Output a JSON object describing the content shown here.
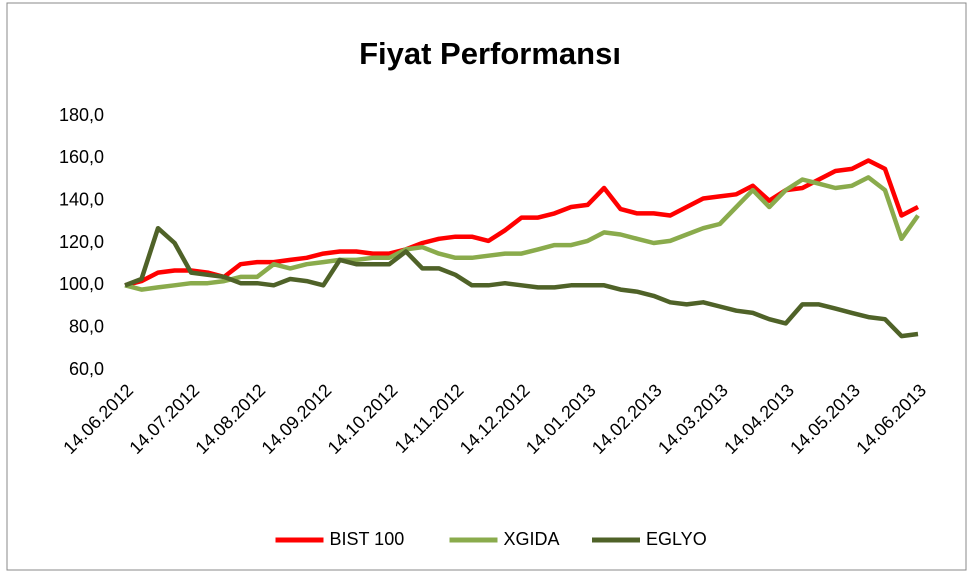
{
  "chart_data": {
    "type": "line",
    "title": "Fiyat Performansı",
    "categories": [
      "14.06.2012",
      null,
      null,
      null,
      "14.07.2012",
      null,
      null,
      null,
      "14.08.2012",
      null,
      null,
      null,
      "14.09.2012",
      null,
      null,
      null,
      "14.10.2012",
      null,
      null,
      null,
      "14.11.2012",
      null,
      null,
      null,
      "14.12.2012",
      null,
      null,
      null,
      "14.01.2013",
      null,
      null,
      null,
      "14.02.2013",
      null,
      null,
      null,
      "14.03.2013",
      null,
      null,
      null,
      "14.04.2013",
      null,
      null,
      null,
      "14.05.2013",
      null,
      null,
      null,
      "14.06.2013"
    ],
    "series": [
      {
        "name": "BIST 100",
        "color": "#ff0000",
        "values": [
          100,
          102,
          106,
          107,
          107,
          106,
          104,
          110,
          111,
          111,
          112,
          113,
          115,
          116,
          116,
          115,
          115,
          117,
          120,
          122,
          123,
          123,
          121,
          126,
          132,
          132,
          134,
          137,
          138,
          146,
          136,
          134,
          134,
          133,
          137,
          141,
          142,
          143,
          147,
          140,
          145,
          146,
          150,
          154,
          155,
          159,
          155,
          133,
          137
        ]
      },
      {
        "name": "XGIDA",
        "color": "#8aab4c",
        "values": [
          100,
          98,
          99,
          100,
          101,
          101,
          102,
          104,
          104,
          110,
          108,
          110,
          111,
          112,
          112,
          113,
          113,
          117,
          118,
          115,
          113,
          113,
          114,
          115,
          115,
          117,
          119,
          119,
          121,
          125,
          124,
          122,
          120,
          121,
          124,
          127,
          129,
          137,
          145,
          137,
          145,
          150,
          148,
          146,
          147,
          151,
          145,
          122,
          133
        ]
      },
      {
        "name": "EGLYO",
        "color": "#4f6228",
        "values": [
          100,
          103,
          127,
          120,
          106,
          105,
          104,
          101,
          101,
          100,
          103,
          102,
          100,
          112,
          110,
          110,
          110,
          116,
          108,
          108,
          105,
          100,
          100,
          101,
          100,
          99,
          99,
          100,
          100,
          100,
          98,
          97,
          95,
          92,
          91,
          92,
          90,
          88,
          87,
          84,
          82,
          91,
          91,
          89,
          87,
          85,
          84,
          76,
          77
        ]
      }
    ],
    "ylim": [
      60,
      180
    ],
    "yticks": [
      {
        "value": 60,
        "label": "60,0"
      },
      {
        "value": 80,
        "label": "80,0"
      },
      {
        "value": 100,
        "label": "100,0"
      },
      {
        "value": 120,
        "label": "120,0"
      },
      {
        "value": 140,
        "label": "140,0"
      },
      {
        "value": 160,
        "label": "160,0"
      },
      {
        "value": 180,
        "label": "180,0"
      }
    ],
    "legend": "bottom"
  }
}
